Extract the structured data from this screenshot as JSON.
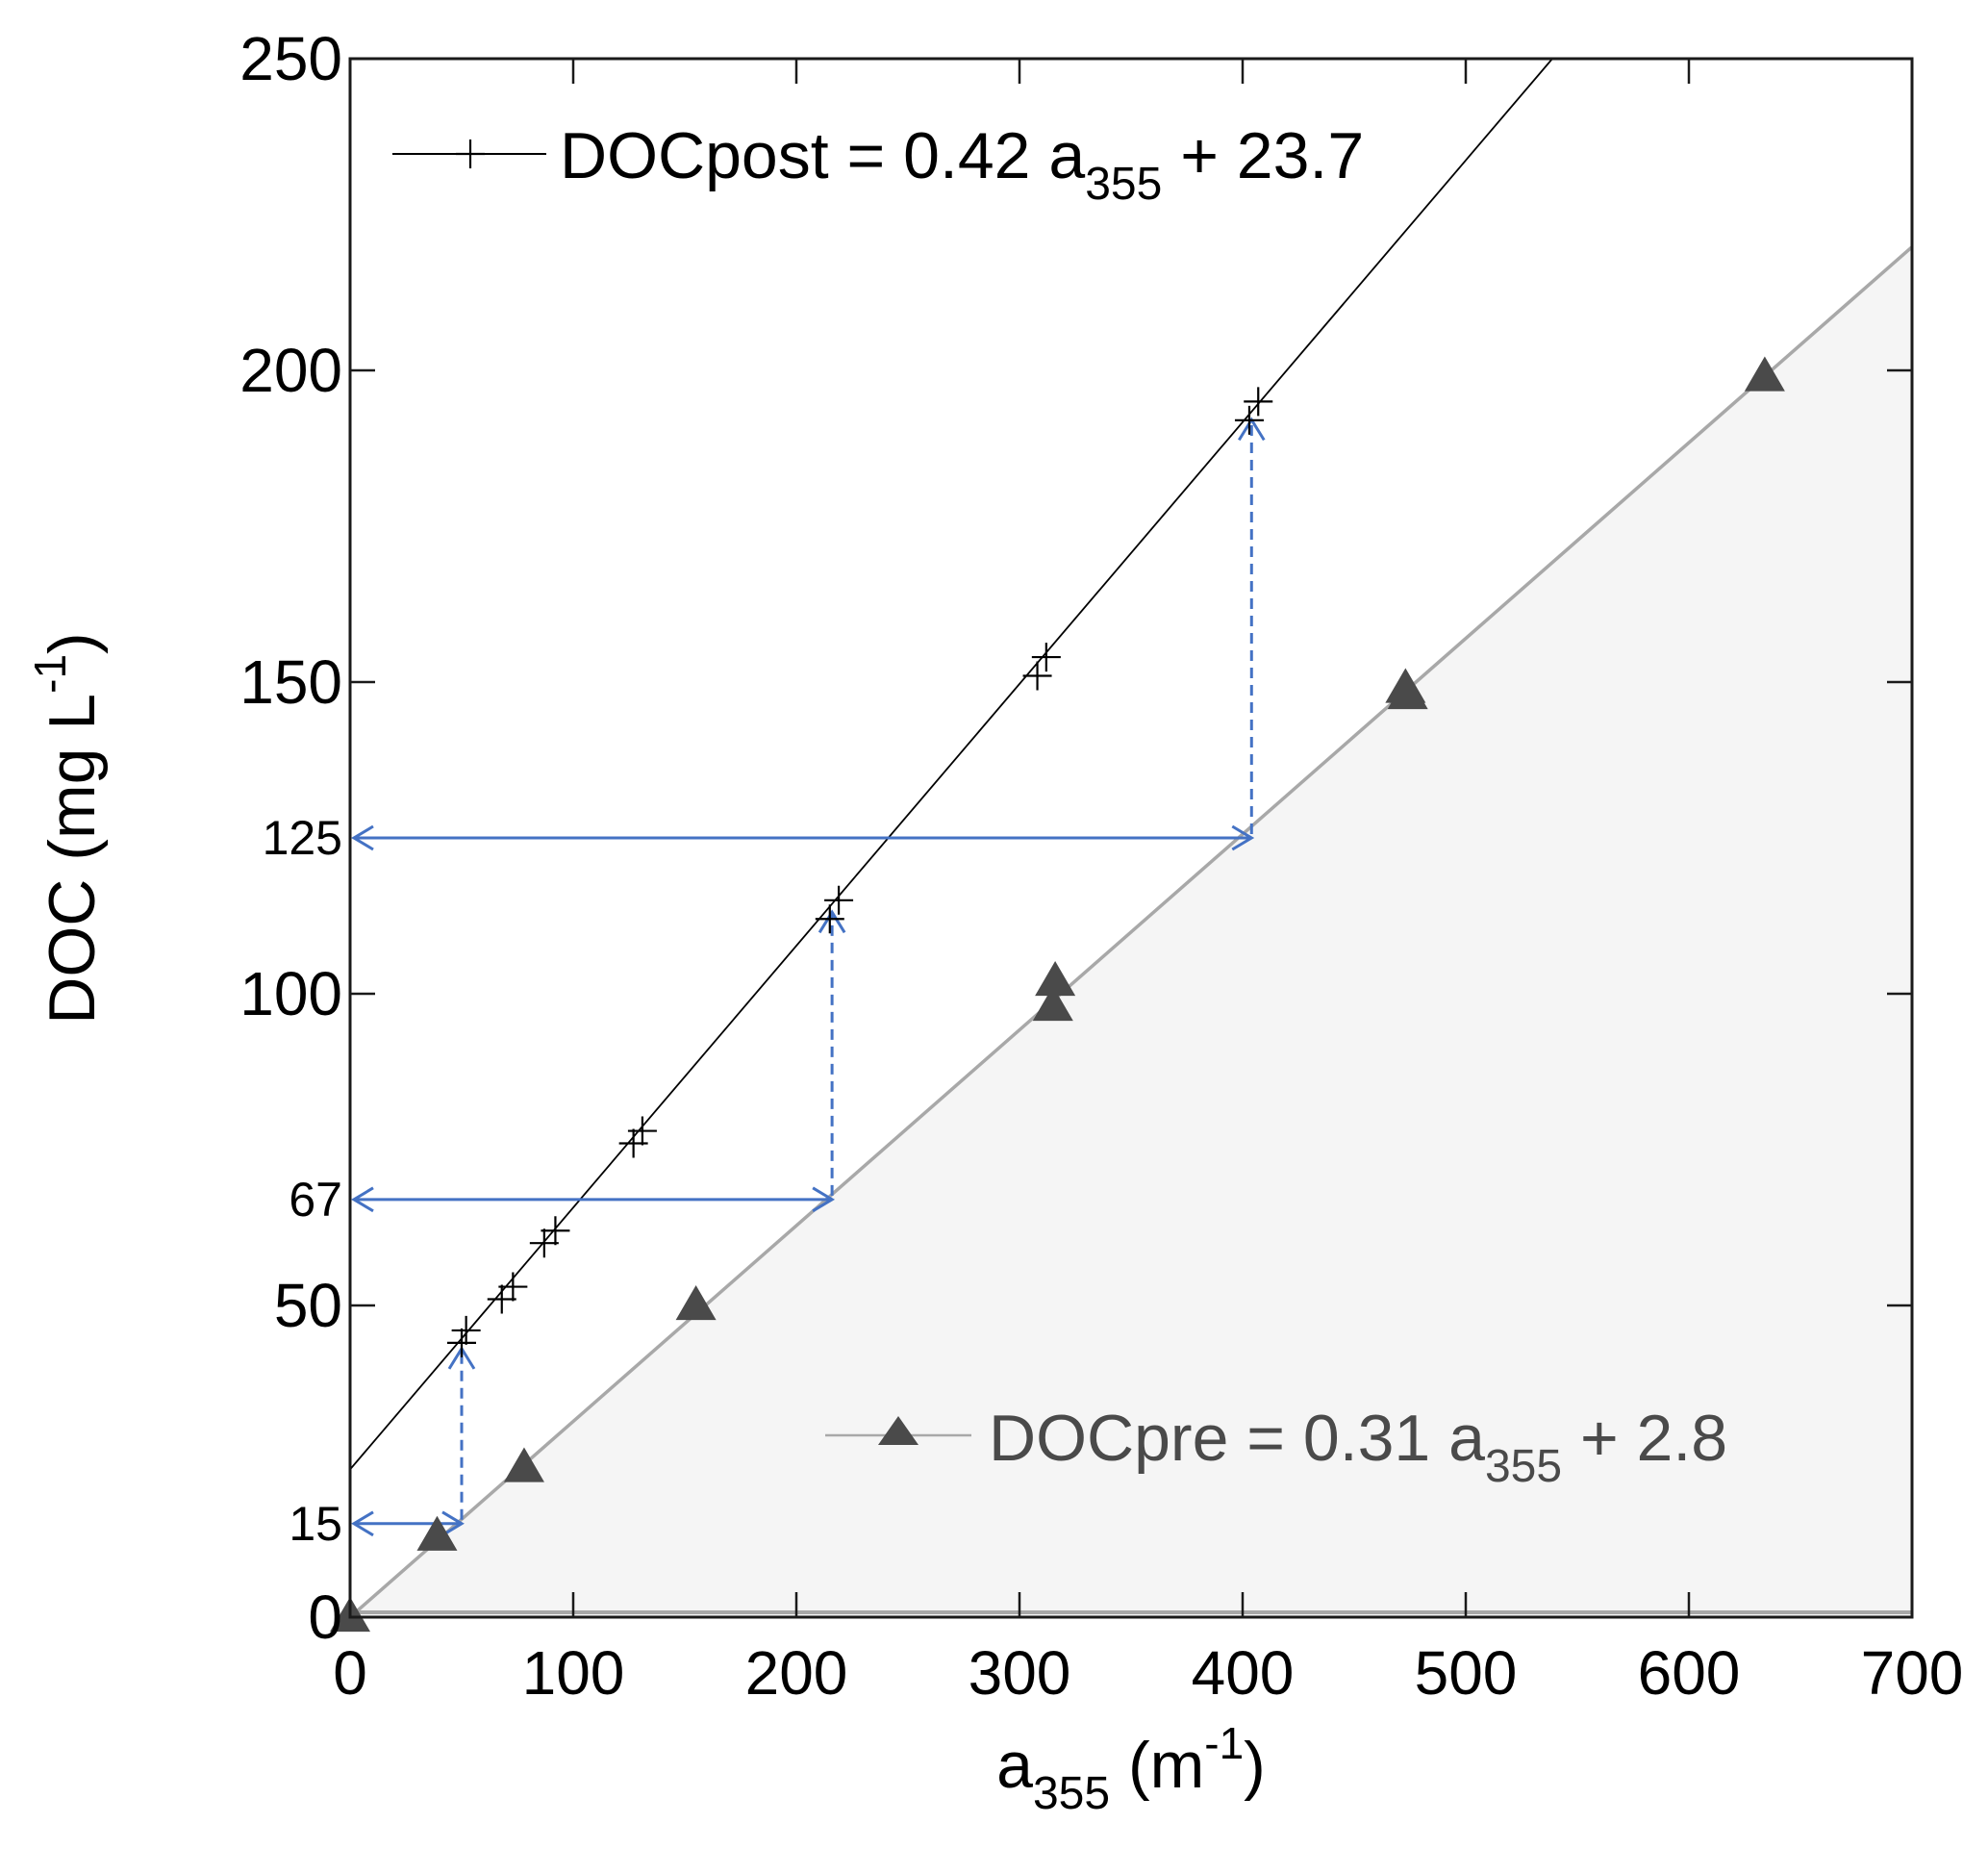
{
  "chart_data": {
    "type": "scatter",
    "ylabel": {
      "main": "DOC (mg L",
      "sup": "-1",
      "end": ")"
    },
    "xlabel": {
      "main": "a",
      "sub": "355",
      "rest": " (m",
      "sup": "-1",
      "end": ")"
    },
    "xlim": [
      0,
      700
    ],
    "ylim": [
      0,
      250
    ],
    "x_ticks": [
      {
        "value": 0,
        "label": "0"
      },
      {
        "value": 100,
        "label": "100"
      },
      {
        "value": 200,
        "label": "200"
      },
      {
        "value": 300,
        "label": "300"
      },
      {
        "value": 400,
        "label": "400"
      },
      {
        "value": 500,
        "label": "500"
      },
      {
        "value": 600,
        "label": "600"
      },
      {
        "value": 700,
        "label": "700"
      }
    ],
    "y_ticks": [
      {
        "value": 0,
        "label": "0"
      },
      {
        "value": 50,
        "label": "50"
      },
      {
        "value": 100,
        "label": "100"
      },
      {
        "value": 150,
        "label": "150"
      },
      {
        "value": 200,
        "label": "200"
      },
      {
        "value": 250,
        "label": "250"
      }
    ],
    "y_extra_ticks": [
      {
        "value": 15,
        "label": "15"
      },
      {
        "value": 67,
        "label": "67"
      },
      {
        "value": 125,
        "label": "125"
      }
    ],
    "grid": false,
    "series": [
      {
        "name": "DOCpost",
        "legend": {
          "prefix": "DOCpost = 0.42 a",
          "sub": "355",
          "suffix": " + 23.7"
        },
        "slope": 0.42,
        "intercept": 23.7,
        "marker": "plus",
        "color": "#000000",
        "points": [
          {
            "x": 50,
            "y": 44
          },
          {
            "x": 52,
            "y": 46
          },
          {
            "x": 68,
            "y": 51
          },
          {
            "x": 73,
            "y": 53
          },
          {
            "x": 87,
            "y": 60
          },
          {
            "x": 92,
            "y": 62
          },
          {
            "x": 127,
            "y": 76
          },
          {
            "x": 131,
            "y": 78
          },
          {
            "x": 215,
            "y": 112
          },
          {
            "x": 219,
            "y": 115
          },
          {
            "x": 308,
            "y": 151
          },
          {
            "x": 312,
            "y": 154
          },
          {
            "x": 403,
            "y": 192
          },
          {
            "x": 407,
            "y": 195
          }
        ]
      },
      {
        "name": "DOCpre",
        "legend": {
          "prefix": "DOCpre = 0.31 a",
          "sub": "355",
          "suffix": " + 2.8"
        },
        "slope": 0.31,
        "intercept": 2.8,
        "marker": "triangle",
        "color": "#4a4a4a",
        "points": [
          {
            "x": 0,
            "y": 0
          },
          {
            "x": 39,
            "y": 13
          },
          {
            "x": 78,
            "y": 24
          },
          {
            "x": 155,
            "y": 50
          },
          {
            "x": 315,
            "y": 98
          },
          {
            "x": 316,
            "y": 102
          },
          {
            "x": 473,
            "y": 149
          },
          {
            "x": 474,
            "y": 148
          },
          {
            "x": 634,
            "y": 199
          }
        ]
      }
    ],
    "arrows": [
      {
        "y": 15,
        "x_from": 0,
        "x_to": 50,
        "post_y": 44
      },
      {
        "y": 67,
        "x_from": 0,
        "x_to": 216,
        "post_y": 114
      },
      {
        "y": 125,
        "x_from": 0,
        "x_to": 404,
        "post_y": 193
      }
    ],
    "colors": {
      "post": "#000000",
      "pre_marker": "#4a4a4a",
      "pre_line": "#a8a8a8",
      "fill": "#f5f5f5",
      "arrow": "#4472c4",
      "axis": "#1a1a1a",
      "pre_legend_text": "#4a4a4a"
    }
  }
}
